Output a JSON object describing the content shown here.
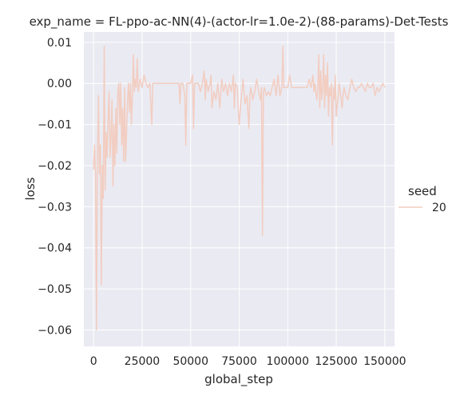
{
  "chart_data": {
    "type": "line",
    "title": "exp_name = FL-ppo-ac-NN(4)-(actor-lr=1.0e-2)-(88-params)-Det-Tests",
    "xlabel": "global_step",
    "ylabel": "loss",
    "xlim": [
      -5000,
      155000
    ],
    "ylim": [
      -0.064,
      0.0125
    ],
    "xticks": [
      0,
      25000,
      50000,
      75000,
      100000,
      125000,
      150000
    ],
    "xtick_labels": [
      "0",
      "25000",
      "50000",
      "75000",
      "100000",
      "125000",
      "150000"
    ],
    "yticks": [
      0.01,
      0.0,
      -0.01,
      -0.02,
      -0.03,
      -0.04,
      -0.05,
      -0.06
    ],
    "ytick_labels": [
      "0.01",
      "0.00",
      "−0.01",
      "−0.02",
      "−0.03",
      "−0.04",
      "−0.05",
      "−0.06"
    ],
    "grid": true,
    "legend": {
      "title": "seed",
      "placement": "right"
    },
    "series": [
      {
        "name": "20",
        "color": "#f2cdc1",
        "points": [
          [
            0,
            -0.021
          ],
          [
            500,
            -0.015
          ],
          [
            1000,
            -0.022
          ],
          [
            1500,
            -0.06
          ],
          [
            2000,
            -0.018
          ],
          [
            2500,
            -0.003
          ],
          [
            3000,
            -0.022
          ],
          [
            3500,
            -0.015
          ],
          [
            4000,
            -0.049
          ],
          [
            4500,
            -0.02
          ],
          [
            5000,
            -0.028
          ],
          [
            5500,
            0.009
          ],
          [
            6000,
            -0.026
          ],
          [
            6500,
            -0.012
          ],
          [
            7000,
            -0.018
          ],
          [
            7500,
            -0.008
          ],
          [
            8000,
            -0.002
          ],
          [
            8500,
            -0.018
          ],
          [
            9000,
            -0.013
          ],
          [
            9500,
            -0.004
          ],
          [
            10000,
            -0.025
          ],
          [
            10500,
            -0.01
          ],
          [
            11000,
            -0.02
          ],
          [
            11500,
            -0.006
          ],
          [
            12000,
            -0.017
          ],
          [
            12500,
            -0.002
          ],
          [
            13000,
            0.0
          ],
          [
            13500,
            -0.01
          ],
          [
            14000,
            0.0
          ],
          [
            14500,
            -0.015
          ],
          [
            15000,
            -0.006
          ],
          [
            15500,
            -0.019
          ],
          [
            16000,
            -0.001
          ],
          [
            16500,
            -0.019
          ],
          [
            17000,
            -0.012
          ],
          [
            17500,
            -0.004
          ],
          [
            18000,
            0.0
          ],
          [
            18500,
            -0.007
          ],
          [
            19000,
            0.0
          ],
          [
            19500,
            -0.01
          ],
          [
            20000,
            -0.003
          ],
          [
            20500,
            0.007
          ],
          [
            21000,
            -0.002
          ],
          [
            21500,
            0.001
          ],
          [
            22000,
            -0.001
          ],
          [
            22500,
            0.006
          ],
          [
            23000,
            -0.002
          ],
          [
            24000,
            0.001
          ],
          [
            25000,
            -0.001
          ],
          [
            26000,
            0.002
          ],
          [
            27000,
            0.0
          ],
          [
            28000,
            -0.001
          ],
          [
            29000,
            0.0
          ],
          [
            30000,
            -0.01
          ],
          [
            30500,
            0.0
          ],
          [
            32000,
            0.0
          ],
          [
            35000,
            0.0
          ],
          [
            38000,
            0.0
          ],
          [
            42000,
            0.0
          ],
          [
            44000,
            0.0
          ],
          [
            44500,
            -0.005
          ],
          [
            45000,
            0.0
          ],
          [
            46000,
            0.0
          ],
          [
            47000,
            -0.003
          ],
          [
            47500,
            -0.015
          ],
          [
            48000,
            0.0
          ],
          [
            50000,
            0.0
          ],
          [
            51000,
            0.002
          ],
          [
            51500,
            -0.011
          ],
          [
            52000,
            0.0
          ],
          [
            54000,
            0.0
          ],
          [
            55000,
            -0.002
          ],
          [
            56000,
            0.0
          ],
          [
            57000,
            0.003
          ],
          [
            57500,
            -0.004
          ],
          [
            58000,
            0.001
          ],
          [
            59000,
            -0.002
          ],
          [
            60000,
            0.0
          ],
          [
            60500,
            0.002
          ],
          [
            61000,
            -0.006
          ],
          [
            62000,
            -0.002
          ],
          [
            63000,
            -0.004
          ],
          [
            64000,
            0.0
          ],
          [
            65000,
            -0.006
          ],
          [
            66000,
            0.001
          ],
          [
            67000,
            -0.002
          ],
          [
            68000,
            0.0
          ],
          [
            69000,
            -0.003
          ],
          [
            70000,
            0.0
          ],
          [
            71000,
            -0.002
          ],
          [
            72000,
            0.002
          ],
          [
            72500,
            -0.006
          ],
          [
            73000,
            0.0
          ],
          [
            74000,
            -0.001
          ],
          [
            75000,
            -0.01
          ],
          [
            76000,
            -0.004
          ],
          [
            77000,
            0.001
          ],
          [
            78000,
            -0.005
          ],
          [
            79000,
            -0.003
          ],
          [
            80000,
            -0.011
          ],
          [
            80500,
            -0.003
          ],
          [
            81000,
            -0.001
          ],
          [
            82000,
            -0.004
          ],
          [
            83000,
            -0.002
          ],
          [
            84000,
            0.001
          ],
          [
            85000,
            -0.002
          ],
          [
            86000,
            -0.004
          ],
          [
            86500,
            -0.001
          ],
          [
            87000,
            -0.037
          ],
          [
            87500,
            -0.002
          ],
          [
            88000,
            -0.001
          ],
          [
            89000,
            -0.003
          ],
          [
            90000,
            -0.002
          ],
          [
            91000,
            -0.003
          ],
          [
            92000,
            -0.001
          ],
          [
            93000,
            0.001
          ],
          [
            94000,
            -0.003
          ],
          [
            95000,
            0.002
          ],
          [
            96000,
            -0.003
          ],
          [
            97000,
            -0.001
          ],
          [
            97500,
            0.009
          ],
          [
            98000,
            -0.001
          ],
          [
            99000,
            -0.001
          ],
          [
            100000,
            -0.001
          ],
          [
            101000,
            0.002
          ],
          [
            102000,
            -0.001
          ],
          [
            104000,
            -0.001
          ],
          [
            106000,
            -0.001
          ],
          [
            108000,
            -0.001
          ],
          [
            110000,
            -0.001
          ],
          [
            111000,
            0.001
          ],
          [
            112000,
            -0.001
          ],
          [
            113000,
            0.002
          ],
          [
            113500,
            -0.002
          ],
          [
            114000,
            0.0
          ],
          [
            115000,
            -0.004
          ],
          [
            115500,
            -0.001
          ],
          [
            116000,
            0.007
          ],
          [
            116500,
            -0.006
          ],
          [
            117000,
            0.003
          ],
          [
            117500,
            -0.004
          ],
          [
            118000,
            -0.001
          ],
          [
            118500,
            0.007
          ],
          [
            119000,
            -0.006
          ],
          [
            119500,
            0.002
          ],
          [
            120000,
            -0.003
          ],
          [
            120500,
            0.005
          ],
          [
            121000,
            -0.008
          ],
          [
            121500,
            -0.001
          ],
          [
            122000,
            -0.003
          ],
          [
            122500,
            0.0
          ],
          [
            123000,
            -0.015
          ],
          [
            123500,
            -0.001
          ],
          [
            124000,
            -0.004
          ],
          [
            124500,
            0.002
          ],
          [
            125000,
            -0.008
          ],
          [
            126000,
            -0.003
          ],
          [
            126500,
            0.0
          ],
          [
            127000,
            -0.002
          ],
          [
            128000,
            -0.006
          ],
          [
            128500,
            -0.003
          ],
          [
            129000,
            -0.001
          ],
          [
            130000,
            -0.003
          ],
          [
            131000,
            -0.004
          ],
          [
            132000,
            -0.001
          ],
          [
            133000,
            0.001
          ],
          [
            134000,
            -0.001
          ],
          [
            135000,
            -0.002
          ],
          [
            136000,
            -0.001
          ],
          [
            137000,
            -0.001
          ],
          [
            138000,
            0.0
          ],
          [
            139000,
            -0.001
          ],
          [
            140000,
            -0.002
          ],
          [
            141000,
            0.0
          ],
          [
            142000,
            -0.001
          ],
          [
            143000,
            -0.001
          ],
          [
            144000,
            0.0
          ],
          [
            145000,
            -0.003
          ],
          [
            146000,
            -0.001
          ],
          [
            147000,
            -0.002
          ],
          [
            148000,
            -0.001
          ],
          [
            149000,
            0.0
          ],
          [
            150000,
            -0.001
          ]
        ]
      }
    ]
  }
}
